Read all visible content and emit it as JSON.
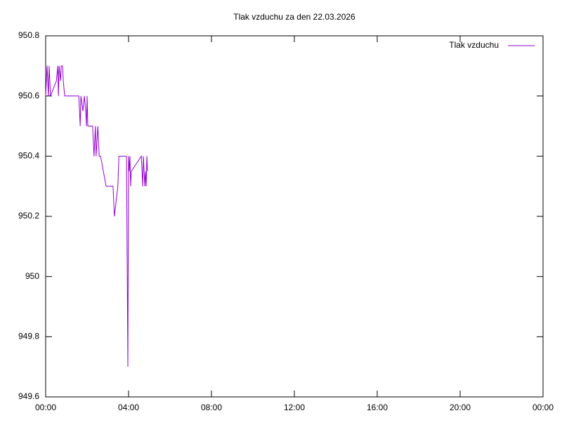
{
  "chart_data": {
    "type": "line",
    "title": "Tlak vzduchu za den 22.03.2026",
    "x": [
      0,
      2,
      4,
      8,
      10,
      14,
      31,
      35,
      37,
      39,
      43,
      45,
      49,
      51,
      55,
      96,
      98,
      100,
      102,
      108,
      112,
      116,
      118,
      120,
      122,
      136,
      138,
      140,
      144,
      146,
      151,
      153,
      155,
      159,
      175,
      195,
      197,
      199,
      209,
      212,
      234,
      236,
      238,
      240,
      242,
      244,
      246,
      248,
      277,
      279,
      281,
      283,
      287,
      289,
      291,
      293,
      295
    ],
    "series": [
      {
        "name": "Tlak vzduchu",
        "color": "#9400d3",
        "values": [
          950.6,
          950.65,
          950.7,
          950.6,
          950.7,
          950.6,
          950.65,
          950.7,
          950.6,
          950.7,
          950.65,
          950.7,
          950.7,
          950.65,
          950.6,
          950.6,
          950.55,
          950.5,
          950.6,
          950.55,
          950.6,
          950.55,
          950.5,
          950.6,
          950.5,
          950.5,
          950.45,
          950.4,
          950.5,
          950.4,
          950.5,
          950.45,
          950.4,
          950.4,
          950.3,
          950.3,
          950.25,
          950.2,
          950.3,
          950.4,
          950.4,
          950.05,
          949.7,
          950.4,
          950.35,
          950.4,
          950.3,
          950.35,
          950.4,
          950.35,
          950.3,
          950.4,
          950.3,
          950.35,
          950.3,
          950.4,
          950.35
        ]
      }
    ],
    "xlim": [
      0,
      1440
    ],
    "xticks": [
      {
        "value": 0,
        "label": "00:00"
      },
      {
        "value": 240,
        "label": "04:00"
      },
      {
        "value": 480,
        "label": "08:00"
      },
      {
        "value": 720,
        "label": "12:00"
      },
      {
        "value": 960,
        "label": "16:00"
      },
      {
        "value": 1200,
        "label": "20:00"
      },
      {
        "value": 1440,
        "label": "00:00"
      }
    ],
    "ylim": [
      949.6,
      950.8
    ],
    "yticks": [
      949.6,
      949.8,
      950,
      950.2,
      950.4,
      950.6,
      950.8
    ],
    "grid": false,
    "legend": "top-right"
  }
}
